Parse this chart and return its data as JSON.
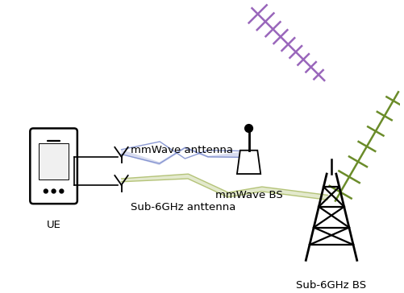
{
  "figsize": [
    5.02,
    3.64
  ],
  "dpi": 100,
  "bg_color": "#ffffff",
  "mmwave_beam_color": "#7788cc",
  "sub6_beam_color": "#aabb66",
  "yagi_mmwave_color": "#9966bb",
  "yagi_sub6_color": "#6b8c2a",
  "label_ue": "UE",
  "label_mmwave_ant": "mmWave anttenna",
  "label_sub6_ant": "Sub-6GHz anttenna",
  "label_mmwave_bs": "mmWave BS",
  "label_sub6_bs": "Sub-6GHz BS",
  "font_size": 9.5
}
